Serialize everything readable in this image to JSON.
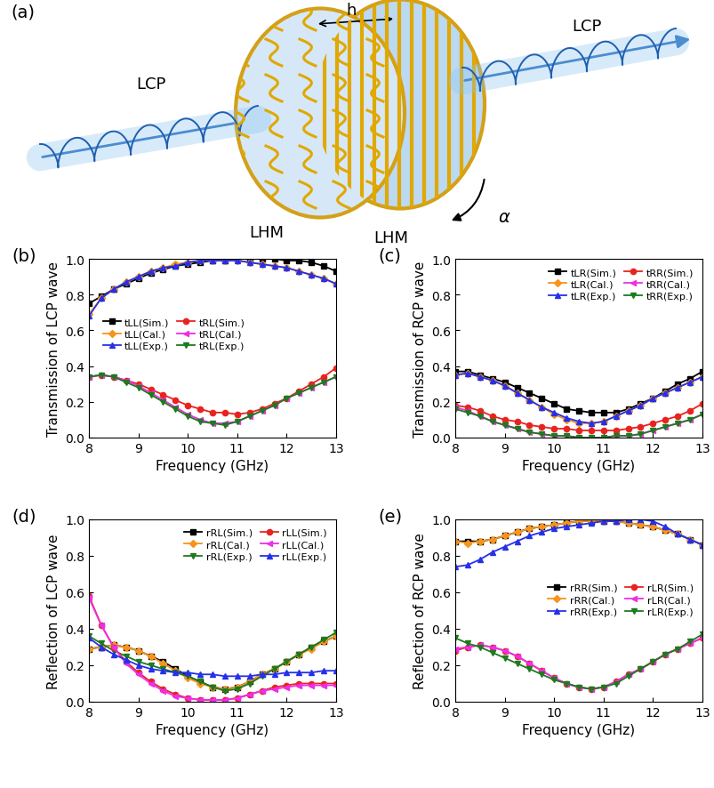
{
  "diagram": {
    "panel": "(a)",
    "distance": "h",
    "input": "LCP",
    "output": "LCP",
    "layer1": "LHM",
    "layer2": "LHM",
    "rotation": "α"
  },
  "chart_data": [
    {
      "type": "line",
      "title": "(b)",
      "x_label": "Frequency (GHz)",
      "y_label": "Transmission of LCP wave",
      "xlim": [
        8,
        13
      ],
      "xticks": [
        8,
        9,
        10,
        11,
        12,
        13
      ],
      "ylim": [
        0.0,
        1.0
      ],
      "yticks": [
        0.0,
        0.2,
        0.4,
        0.6,
        0.8,
        1.0
      ],
      "legend": "center left",
      "x": [
        8,
        8.25,
        8.5,
        8.75,
        9,
        9.25,
        9.5,
        9.75,
        10,
        10.25,
        10.5,
        10.75,
        11,
        11.25,
        11.5,
        11.75,
        12,
        12.25,
        12.5,
        12.75,
        13
      ],
      "series": [
        {
          "name": "tLL(Sim.)",
          "color": "#000000",
          "marker": "square",
          "values": [
            0.75,
            0.79,
            0.83,
            0.86,
            0.89,
            0.92,
            0.94,
            0.96,
            0.97,
            0.98,
            0.99,
            0.99,
            1.0,
            1.0,
            1.0,
            1.0,
            0.99,
            0.99,
            0.98,
            0.96,
            0.93
          ]
        },
        {
          "name": "tLL(Cal.)",
          "color": "#f7941d",
          "marker": "diamond",
          "values": [
            0.69,
            0.78,
            0.83,
            0.87,
            0.9,
            0.93,
            0.95,
            0.97,
            0.98,
            0.99,
            0.99,
            0.99,
            0.99,
            0.98,
            0.97,
            0.96,
            0.95,
            0.93,
            0.91,
            0.89,
            0.86
          ]
        },
        {
          "name": "tLL(Exp.)",
          "color": "#2530e8",
          "marker": "triangle_up",
          "values": [
            0.68,
            0.78,
            0.83,
            0.87,
            0.9,
            0.93,
            0.95,
            0.96,
            0.98,
            0.99,
            0.99,
            0.99,
            0.99,
            0.98,
            0.97,
            0.96,
            0.95,
            0.93,
            0.91,
            0.89,
            0.86
          ]
        },
        {
          "name": "tRL(Sim.)",
          "color": "#e8231f",
          "marker": "circle",
          "values": [
            0.34,
            0.35,
            0.34,
            0.32,
            0.3,
            0.27,
            0.24,
            0.21,
            0.18,
            0.16,
            0.14,
            0.14,
            0.13,
            0.14,
            0.16,
            0.19,
            0.22,
            0.26,
            0.3,
            0.34,
            0.39
          ]
        },
        {
          "name": "tRL(Cal.)",
          "color": "#ee2ee8",
          "marker": "triangle_left",
          "values": [
            0.34,
            0.35,
            0.34,
            0.32,
            0.29,
            0.25,
            0.21,
            0.17,
            0.13,
            0.1,
            0.08,
            0.08,
            0.09,
            0.12,
            0.15,
            0.18,
            0.22,
            0.25,
            0.28,
            0.31,
            0.34
          ]
        },
        {
          "name": "tRL(Exp.)",
          "color": "#1e7a1e",
          "marker": "triangle_down",
          "values": [
            0.34,
            0.35,
            0.34,
            0.31,
            0.28,
            0.24,
            0.2,
            0.16,
            0.12,
            0.09,
            0.08,
            0.07,
            0.09,
            0.12,
            0.15,
            0.18,
            0.22,
            0.25,
            0.28,
            0.31,
            0.34
          ]
        }
      ]
    },
    {
      "type": "line",
      "title": "(c)",
      "x_label": "Frequency (GHz)",
      "y_label": "Transmission of RCP wave",
      "xlim": [
        8,
        13
      ],
      "xticks": [
        8,
        9,
        10,
        11,
        12,
        13
      ],
      "ylim": [
        0.0,
        1.0
      ],
      "yticks": [
        0.0,
        0.2,
        0.4,
        0.6,
        0.8,
        1.0
      ],
      "legend": "upper right",
      "x": [
        8,
        8.25,
        8.5,
        8.75,
        9,
        9.25,
        9.5,
        9.75,
        10,
        10.25,
        10.5,
        10.75,
        11,
        11.25,
        11.5,
        11.75,
        12,
        12.25,
        12.5,
        12.75,
        13
      ],
      "series": [
        {
          "name": "tLR(Sim.)",
          "color": "#000000",
          "marker": "square",
          "values": [
            0.37,
            0.37,
            0.35,
            0.33,
            0.31,
            0.28,
            0.25,
            0.22,
            0.19,
            0.16,
            0.15,
            0.14,
            0.14,
            0.14,
            0.16,
            0.19,
            0.22,
            0.26,
            0.3,
            0.33,
            0.37
          ]
        },
        {
          "name": "tLR(Cal.)",
          "color": "#f7941d",
          "marker": "diamond",
          "values": [
            0.35,
            0.36,
            0.34,
            0.32,
            0.29,
            0.25,
            0.21,
            0.17,
            0.13,
            0.1,
            0.08,
            0.08,
            0.09,
            0.12,
            0.15,
            0.18,
            0.22,
            0.25,
            0.28,
            0.31,
            0.34
          ]
        },
        {
          "name": "tLR(Exp.)",
          "color": "#2530e8",
          "marker": "triangle_up",
          "values": [
            0.35,
            0.36,
            0.34,
            0.32,
            0.29,
            0.25,
            0.21,
            0.17,
            0.14,
            0.11,
            0.09,
            0.08,
            0.09,
            0.12,
            0.15,
            0.18,
            0.22,
            0.25,
            0.28,
            0.31,
            0.34
          ]
        },
        {
          "name": "tRR(Sim.)",
          "color": "#e8231f",
          "marker": "circle",
          "values": [
            0.18,
            0.17,
            0.15,
            0.12,
            0.1,
            0.09,
            0.07,
            0.06,
            0.05,
            0.05,
            0.04,
            0.04,
            0.04,
            0.04,
            0.05,
            0.06,
            0.08,
            0.1,
            0.12,
            0.15,
            0.19
          ]
        },
        {
          "name": "tRR(Cal.)",
          "color": "#ee2ee8",
          "marker": "triangle_left",
          "values": [
            0.17,
            0.15,
            0.12,
            0.09,
            0.07,
            0.05,
            0.03,
            0.02,
            0.01,
            0.01,
            0.0,
            0.0,
            0.0,
            0.01,
            0.01,
            0.02,
            0.04,
            0.06,
            0.08,
            0.1,
            0.13
          ]
        },
        {
          "name": "tRR(Exp.)",
          "color": "#1e7a1e",
          "marker": "triangle_down",
          "values": [
            0.16,
            0.14,
            0.12,
            0.09,
            0.07,
            0.05,
            0.03,
            0.02,
            0.01,
            0.01,
            0.0,
            0.0,
            0.0,
            0.01,
            0.01,
            0.02,
            0.04,
            0.06,
            0.08,
            0.1,
            0.13
          ]
        }
      ]
    },
    {
      "type": "line",
      "title": "(d)",
      "x_label": "Frequency (GHz)",
      "y_label": "Reflection of LCP wave",
      "xlim": [
        8,
        13
      ],
      "xticks": [
        8,
        9,
        10,
        11,
        12,
        13
      ],
      "ylim": [
        0.0,
        1.0
      ],
      "yticks": [
        0.0,
        0.2,
        0.4,
        0.6,
        0.8,
        1.0
      ],
      "legend": "upper right",
      "x": [
        8,
        8.25,
        8.5,
        8.75,
        9,
        9.25,
        9.5,
        9.75,
        10,
        10.25,
        10.5,
        10.75,
        11,
        11.25,
        11.5,
        11.75,
        12,
        12.25,
        12.5,
        12.75,
        13
      ],
      "series": [
        {
          "name": "rRL(Sim.)",
          "color": "#000000",
          "marker": "square",
          "values": [
            0.29,
            0.3,
            0.31,
            0.3,
            0.28,
            0.25,
            0.22,
            0.18,
            0.14,
            0.11,
            0.08,
            0.07,
            0.08,
            0.11,
            0.15,
            0.18,
            0.22,
            0.26,
            0.3,
            0.33,
            0.36
          ]
        },
        {
          "name": "rRL(Cal.)",
          "color": "#f7941d",
          "marker": "diamond",
          "values": [
            0.29,
            0.3,
            0.31,
            0.3,
            0.28,
            0.25,
            0.21,
            0.17,
            0.13,
            0.1,
            0.08,
            0.07,
            0.08,
            0.11,
            0.15,
            0.18,
            0.22,
            0.26,
            0.29,
            0.33,
            0.36
          ]
        },
        {
          "name": "rRL(Exp.)",
          "color": "#1e7a1e",
          "marker": "triangle_down",
          "values": [
            0.36,
            0.32,
            0.28,
            0.25,
            0.22,
            0.2,
            0.18,
            0.16,
            0.14,
            0.11,
            0.08,
            0.06,
            0.07,
            0.1,
            0.14,
            0.18,
            0.22,
            0.26,
            0.3,
            0.34,
            0.38
          ]
        },
        {
          "name": "rLL(Sim.)",
          "color": "#e8231f",
          "marker": "circle",
          "values": [
            0.58,
            0.42,
            0.3,
            0.22,
            0.16,
            0.11,
            0.07,
            0.04,
            0.02,
            0.01,
            0.01,
            0.01,
            0.02,
            0.04,
            0.06,
            0.08,
            0.09,
            0.1,
            0.1,
            0.1,
            0.1
          ]
        },
        {
          "name": "rLL(Cal.)",
          "color": "#ee2ee8",
          "marker": "triangle_left",
          "values": [
            0.57,
            0.42,
            0.3,
            0.21,
            0.15,
            0.1,
            0.06,
            0.03,
            0.02,
            0.01,
            0.01,
            0.01,
            0.02,
            0.04,
            0.06,
            0.07,
            0.08,
            0.09,
            0.09,
            0.09,
            0.09
          ]
        },
        {
          "name": "rLL(Exp.)",
          "color": "#2530e8",
          "marker": "triangle_up",
          "values": [
            0.35,
            0.3,
            0.26,
            0.23,
            0.2,
            0.18,
            0.17,
            0.16,
            0.16,
            0.15,
            0.15,
            0.14,
            0.14,
            0.14,
            0.15,
            0.15,
            0.16,
            0.16,
            0.16,
            0.17,
            0.17
          ]
        }
      ]
    },
    {
      "type": "line",
      "title": "(e)",
      "x_label": "Frequency (GHz)",
      "y_label": "Reflection of RCP wave",
      "xlim": [
        8,
        13
      ],
      "xticks": [
        8,
        9,
        10,
        11,
        12,
        13
      ],
      "ylim": [
        0.0,
        1.0
      ],
      "yticks": [
        0.0,
        0.2,
        0.4,
        0.6,
        0.8,
        1.0
      ],
      "legend": "center right",
      "x": [
        8,
        8.25,
        8.5,
        8.75,
        9,
        9.25,
        9.5,
        9.75,
        10,
        10.25,
        10.5,
        10.75,
        11,
        11.25,
        11.5,
        11.75,
        12,
        12.25,
        12.5,
        12.75,
        13
      ],
      "series": [
        {
          "name": "rRR(Sim.)",
          "color": "#000000",
          "marker": "square",
          "values": [
            0.88,
            0.88,
            0.88,
            0.89,
            0.91,
            0.93,
            0.95,
            0.96,
            0.97,
            0.98,
            0.99,
            0.99,
            0.99,
            0.99,
            0.98,
            0.97,
            0.96,
            0.94,
            0.92,
            0.89,
            0.86
          ]
        },
        {
          "name": "rRR(Cal.)",
          "color": "#f7941d",
          "marker": "diamond",
          "values": [
            0.88,
            0.87,
            0.88,
            0.89,
            0.91,
            0.93,
            0.95,
            0.96,
            0.97,
            0.98,
            0.99,
            0.99,
            0.99,
            0.99,
            0.98,
            0.97,
            0.96,
            0.94,
            0.92,
            0.89,
            0.86
          ]
        },
        {
          "name": "rRR(Exp.)",
          "color": "#2530e8",
          "marker": "triangle_up",
          "values": [
            0.74,
            0.75,
            0.78,
            0.82,
            0.85,
            0.88,
            0.91,
            0.93,
            0.95,
            0.96,
            0.97,
            0.98,
            0.99,
            0.99,
            1.0,
            1.0,
            0.99,
            0.96,
            0.92,
            0.89,
            0.86
          ]
        },
        {
          "name": "rLR(Sim.)",
          "color": "#e8231f",
          "marker": "circle",
          "values": [
            0.28,
            0.3,
            0.31,
            0.3,
            0.28,
            0.25,
            0.21,
            0.17,
            0.13,
            0.1,
            0.08,
            0.07,
            0.08,
            0.11,
            0.15,
            0.18,
            0.22,
            0.26,
            0.29,
            0.32,
            0.35
          ]
        },
        {
          "name": "rLR(Cal.)",
          "color": "#ee2ee8",
          "marker": "triangle_left",
          "values": [
            0.29,
            0.3,
            0.31,
            0.3,
            0.28,
            0.25,
            0.21,
            0.17,
            0.13,
            0.1,
            0.08,
            0.07,
            0.08,
            0.11,
            0.15,
            0.18,
            0.22,
            0.26,
            0.29,
            0.32,
            0.35
          ]
        },
        {
          "name": "rLR(Exp.)",
          "color": "#1e7a1e",
          "marker": "triangle_down",
          "values": [
            0.35,
            0.32,
            0.3,
            0.27,
            0.24,
            0.21,
            0.18,
            0.15,
            0.12,
            0.1,
            0.08,
            0.07,
            0.08,
            0.1,
            0.14,
            0.18,
            0.22,
            0.26,
            0.29,
            0.33,
            0.37
          ]
        }
      ]
    }
  ]
}
